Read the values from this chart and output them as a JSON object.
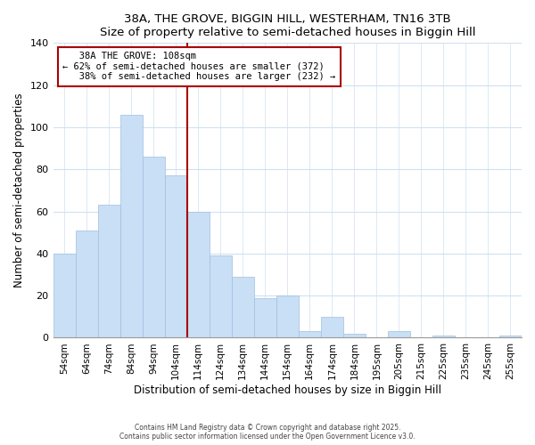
{
  "title1": "38A, THE GROVE, BIGGIN HILL, WESTERHAM, TN16 3TB",
  "title2": "Size of property relative to semi-detached houses in Biggin Hill",
  "xlabel": "Distribution of semi-detached houses by size in Biggin Hill",
  "ylabel": "Number of semi-detached properties",
  "categories": [
    "54sqm",
    "64sqm",
    "74sqm",
    "84sqm",
    "94sqm",
    "104sqm",
    "114sqm",
    "124sqm",
    "134sqm",
    "144sqm",
    "154sqm",
    "164sqm",
    "174sqm",
    "184sqm",
    "195sqm",
    "205sqm",
    "215sqm",
    "225sqm",
    "235sqm",
    "245sqm",
    "255sqm"
  ],
  "values": [
    40,
    51,
    63,
    106,
    86,
    77,
    60,
    39,
    29,
    19,
    20,
    3,
    10,
    2,
    0,
    3,
    0,
    1,
    0,
    0,
    1
  ],
  "bar_color": "#c8dff5",
  "bar_edge_color": "#a0c0e0",
  "property_label": "38A THE GROVE: 108sqm",
  "pct_smaller": 62,
  "count_smaller": 372,
  "pct_larger": 38,
  "count_larger": 232,
  "ylim": [
    0,
    140
  ],
  "annotation_box_color": "#ffffff",
  "annotation_box_edge": "#aa0000",
  "vline_color": "#aa0000",
  "vline_pos": 5.5,
  "footer1": "Contains HM Land Registry data © Crown copyright and database right 2025.",
  "footer2": "Contains public sector information licensed under the Open Government Licence v3.0.",
  "bg_color": "#ffffff",
  "grid_color": "#d0e0f0"
}
